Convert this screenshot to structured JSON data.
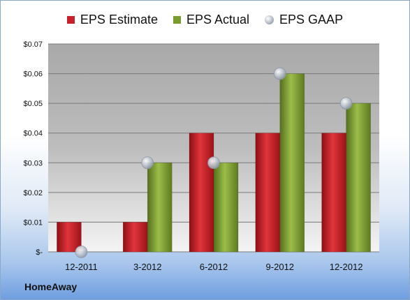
{
  "chart_data": {
    "type": "bar",
    "categories": [
      "12-2011",
      "3-2012",
      "6-2012",
      "9-2012",
      "12-2012"
    ],
    "series": [
      {
        "name": "EPS Estimate",
        "values": [
          0.01,
          0.01,
          0.04,
          0.04,
          0.04
        ],
        "color": "#c8202a"
      },
      {
        "name": "EPS Actual",
        "values": [
          null,
          0.03,
          0.03,
          0.06,
          0.05
        ],
        "color": "#7a9c2e"
      },
      {
        "name": "EPS GAAP",
        "values": [
          0.0,
          0.03,
          0.03,
          0.06,
          0.05
        ],
        "color": "#aab4c2",
        "mark": "dot"
      }
    ],
    "y_ticks": [
      {
        "value": 0.0,
        "label": "$-"
      },
      {
        "value": 0.01,
        "label": "$0.01"
      },
      {
        "value": 0.02,
        "label": "$0.02"
      },
      {
        "value": 0.03,
        "label": "$0.03"
      },
      {
        "value": 0.04,
        "label": "$0.04"
      },
      {
        "value": 0.05,
        "label": "$0.05"
      },
      {
        "value": 0.06,
        "label": "$0.06"
      },
      {
        "value": 0.07,
        "label": "$0.07"
      }
    ],
    "ylim": [
      0,
      0.07
    ],
    "grid": true,
    "legend_position": "top"
  },
  "footer": {
    "company": "HomeAway"
  }
}
